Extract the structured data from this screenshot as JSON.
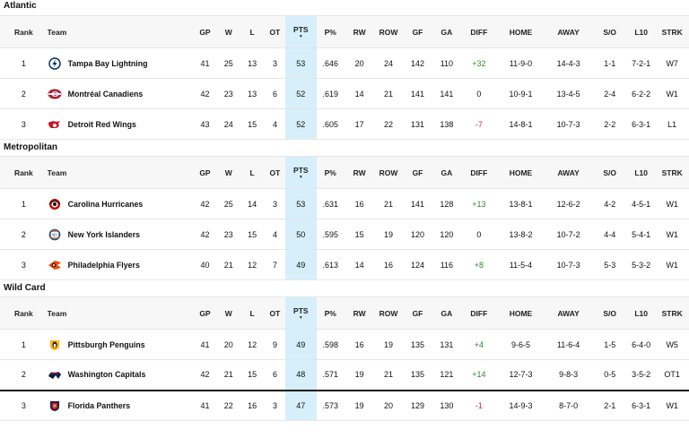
{
  "columns": {
    "rank": "Rank",
    "team": "Team",
    "gp": "GP",
    "w": "W",
    "l": "L",
    "ot": "OT",
    "pts": "PTS",
    "pct": "P%",
    "rw": "RW",
    "row": "ROW",
    "gf": "GF",
    "ga": "GA",
    "diff": "DIFF",
    "home": "HOME",
    "away": "AWAY",
    "so": "S/O",
    "l10": "L10",
    "strk": "STRK"
  },
  "sections": [
    {
      "title": "Atlantic",
      "rows": [
        {
          "rank": "1",
          "team": "Tampa Bay Lightning",
          "gp": "41",
          "w": "25",
          "l": "13",
          "ot": "3",
          "pts": "53",
          "pct": ".646",
          "rw": "20",
          "row": "24",
          "gf": "142",
          "ga": "110",
          "diff": "+32",
          "home": "11-9-0",
          "away": "14-4-3",
          "so": "1-1",
          "l10": "7-2-1",
          "strk": "W7"
        },
        {
          "rank": "2",
          "team": "Montréal Canadiens",
          "gp": "42",
          "w": "23",
          "l": "13",
          "ot": "6",
          "pts": "52",
          "pct": ".619",
          "rw": "14",
          "row": "21",
          "gf": "141",
          "ga": "141",
          "diff": "0",
          "home": "10-9-1",
          "away": "13-4-5",
          "so": "2-4",
          "l10": "6-2-2",
          "strk": "W1"
        },
        {
          "rank": "3",
          "team": "Detroit Red Wings",
          "gp": "43",
          "w": "24",
          "l": "15",
          "ot": "4",
          "pts": "52",
          "pct": ".605",
          "rw": "17",
          "row": "22",
          "gf": "131",
          "ga": "138",
          "diff": "-7",
          "home": "14-8-1",
          "away": "10-7-3",
          "so": "2-2",
          "l10": "6-3-1",
          "strk": "L1"
        }
      ]
    },
    {
      "title": "Metropolitan",
      "rows": [
        {
          "rank": "1",
          "team": "Carolina Hurricanes",
          "gp": "42",
          "w": "25",
          "l": "14",
          "ot": "3",
          "pts": "53",
          "pct": ".631",
          "rw": "16",
          "row": "21",
          "gf": "141",
          "ga": "128",
          "diff": "+13",
          "home": "13-8-1",
          "away": "12-6-2",
          "so": "4-2",
          "l10": "4-5-1",
          "strk": "W1"
        },
        {
          "rank": "2",
          "team": "New York Islanders",
          "gp": "42",
          "w": "23",
          "l": "15",
          "ot": "4",
          "pts": "50",
          "pct": ".595",
          "rw": "15",
          "row": "19",
          "gf": "120",
          "ga": "120",
          "diff": "0",
          "home": "13-8-2",
          "away": "10-7-2",
          "so": "4-4",
          "l10": "5-4-1",
          "strk": "W1"
        },
        {
          "rank": "3",
          "team": "Philadelphia Flyers",
          "gp": "40",
          "w": "21",
          "l": "12",
          "ot": "7",
          "pts": "49",
          "pct": ".613",
          "rw": "14",
          "row": "16",
          "gf": "124",
          "ga": "116",
          "diff": "+8",
          "home": "11-5-4",
          "away": "10-7-3",
          "so": "5-3",
          "l10": "5-3-2",
          "strk": "W1"
        }
      ]
    },
    {
      "title": "Wild Card",
      "rows": [
        {
          "rank": "1",
          "team": "Pittsburgh Penguins",
          "gp": "41",
          "w": "20",
          "l": "12",
          "ot": "9",
          "pts": "49",
          "pct": ".598",
          "rw": "16",
          "row": "19",
          "gf": "135",
          "ga": "131",
          "diff": "+4",
          "home": "9-6-5",
          "away": "11-6-4",
          "so": "1-5",
          "l10": "6-4-0",
          "strk": "W5"
        },
        {
          "rank": "2",
          "team": "Washington Capitals",
          "gp": "42",
          "w": "21",
          "l": "15",
          "ot": "6",
          "pts": "48",
          "pct": ".571",
          "rw": "19",
          "row": "21",
          "gf": "135",
          "ga": "121",
          "diff": "+14",
          "home": "12-7-3",
          "away": "9-8-3",
          "so": "0-5",
          "l10": "3-5-2",
          "strk": "OT1"
        },
        {
          "rank": "3",
          "team": "Florida Panthers",
          "gp": "41",
          "w": "22",
          "l": "16",
          "ot": "3",
          "pts": "47",
          "pct": ".573",
          "rw": "19",
          "row": "20",
          "gf": "129",
          "ga": "130",
          "diff": "-1",
          "home": "14-9-3",
          "away": "8-7-0",
          "so": "2-1",
          "l10": "6-3-1",
          "strk": "W1"
        }
      ]
    }
  ],
  "colors": {
    "pts_highlight": "#d6effa",
    "positive": "#2d8a2d",
    "negative": "#d23030",
    "header_bg": "#f7f7f7"
  },
  "icons": {
    "sort": "sort-desc-icon",
    "logos": [
      "lightning-logo-icon",
      "canadiens-logo-icon",
      "red-wings-logo-icon",
      "hurricanes-logo-icon",
      "islanders-logo-icon",
      "flyers-logo-icon",
      "penguins-logo-icon",
      "capitals-logo-icon",
      "panthers-logo-icon"
    ]
  }
}
